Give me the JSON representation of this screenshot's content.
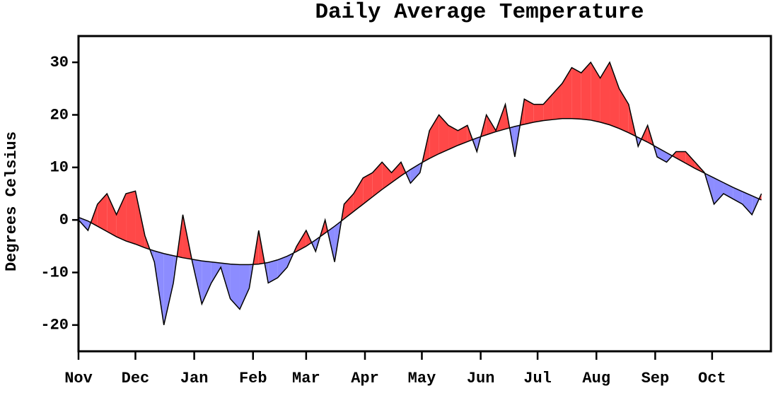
{
  "chart_data": {
    "type": "anomaly-area",
    "title": "Daily Average Temperature",
    "ylabel": "Degrees Celsius",
    "x": [
      0,
      5,
      10,
      15,
      20,
      25,
      30,
      35,
      40,
      45,
      50,
      55,
      60,
      65,
      70,
      75,
      80,
      85,
      90,
      95,
      100,
      105,
      110,
      115,
      120,
      125,
      130,
      135,
      140,
      145,
      150,
      155,
      160,
      165,
      170,
      175,
      180,
      185,
      190,
      195,
      200,
      205,
      210,
      215,
      220,
      225,
      230,
      235,
      240,
      245,
      250,
      255,
      260,
      265,
      270,
      275,
      280,
      285,
      290,
      295,
      300,
      305,
      310,
      315,
      320,
      325,
      330,
      335,
      340,
      345,
      350,
      355,
      360
    ],
    "series": [
      {
        "values": [
          0,
          -2,
          3,
          5,
          1,
          5,
          5.5,
          -3,
          -8,
          -20,
          -12,
          1,
          -8,
          -16,
          -12,
          -9,
          -15,
          -17,
          -13,
          -2,
          -12,
          -11,
          -9,
          -5,
          -2,
          -6,
          0,
          -8,
          3,
          5,
          8,
          9,
          11,
          9,
          11,
          7,
          9,
          17,
          20,
          18,
          17,
          18,
          13,
          20,
          17,
          22,
          12,
          23,
          22,
          22,
          24,
          26,
          29,
          28,
          30,
          27,
          30,
          25,
          22,
          14,
          18,
          12,
          11,
          13,
          13,
          11,
          9,
          3,
          5,
          4,
          3,
          1,
          5
        ]
      },
      {
        "values": [
          0.5,
          -0.2,
          -1.2,
          -2.2,
          -3.2,
          -4,
          -4.6,
          -5.3,
          -5.9,
          -6.4,
          -6.8,
          -7.2,
          -7.5,
          -7.8,
          -8,
          -8.2,
          -8.4,
          -8.5,
          -8.5,
          -8.4,
          -8.1,
          -7.6,
          -6.9,
          -6,
          -5,
          -3.8,
          -2.5,
          -1.2,
          0.2,
          1.6,
          3,
          4.4,
          5.8,
          7.1,
          8.4,
          9.6,
          10.7,
          11.7,
          12.6,
          13.4,
          14.2,
          14.9,
          15.6,
          16.2,
          16.8,
          17.3,
          17.8,
          18.2,
          18.6,
          18.9,
          19.1,
          19.3,
          19.3,
          19.2,
          19,
          18.6,
          18.1,
          17.4,
          16.6,
          15.7,
          14.8,
          13.8,
          12.8,
          11.8,
          10.8,
          9.8,
          8.9,
          8,
          7.1,
          6.2,
          5.4,
          4.6,
          3.8
        ]
      }
    ],
    "above_color": "#ff4848",
    "below_color": "#8c8cff",
    "xlim": [
      0,
      365
    ],
    "xticks": [
      {
        "value": 0,
        "label": "Nov"
      },
      {
        "value": 30,
        "label": "Dec"
      },
      {
        "value": 61,
        "label": "Jan"
      },
      {
        "value": 92,
        "label": "Feb"
      },
      {
        "value": 120,
        "label": "Mar"
      },
      {
        "value": 151,
        "label": "Apr"
      },
      {
        "value": 181,
        "label": "May"
      },
      {
        "value": 212,
        "label": "Jun"
      },
      {
        "value": 242,
        "label": "Jul"
      },
      {
        "value": 273,
        "label": "Aug"
      },
      {
        "value": 304,
        "label": "Sep"
      },
      {
        "value": 334,
        "label": "Oct"
      }
    ],
    "ylim": [
      -25,
      35
    ],
    "yticks": [
      -20,
      -10,
      0,
      10,
      20,
      30
    ]
  }
}
